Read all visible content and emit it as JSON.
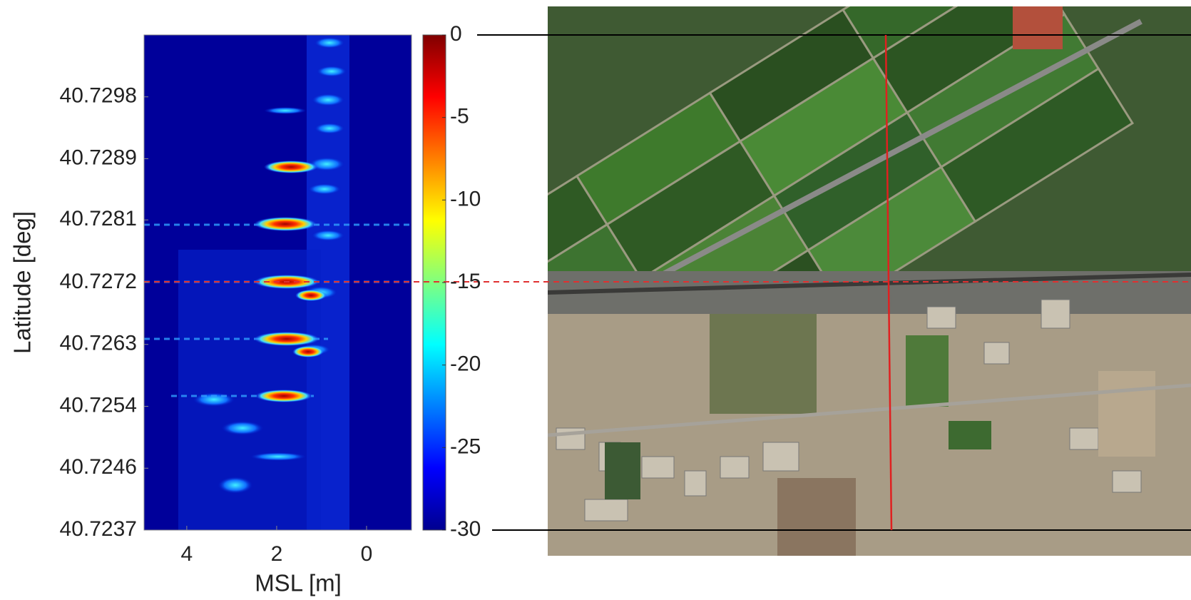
{
  "chart_data": {
    "type": "heatmap",
    "xlabel": "MSL [m]",
    "ylabel": "Latitude [deg]",
    "xlim": [
      4.95,
      -1.0
    ],
    "xticks": [
      4,
      2,
      0
    ],
    "ylim": [
      40.7237,
      40.73066
    ],
    "yticks": [
      {
        "value": 40.7237,
        "label": "40.7237"
      },
      {
        "value": 40.72457,
        "label": "40.7246"
      },
      {
        "value": 40.72544,
        "label": "40.7254"
      },
      {
        "value": 40.72631,
        "label": "40.7263"
      },
      {
        "value": 40.72718,
        "label": "40.7272"
      },
      {
        "value": 40.72806,
        "label": "40.7281"
      },
      {
        "value": 40.72892,
        "label": "40.7289"
      },
      {
        "value": 40.72979,
        "label": "40.7298"
      }
    ],
    "colormap": "jet",
    "clim": [
      -30,
      0
    ],
    "cticks": [
      0,
      -5,
      -10,
      -15,
      -20,
      -25,
      -30
    ]
  }
}
